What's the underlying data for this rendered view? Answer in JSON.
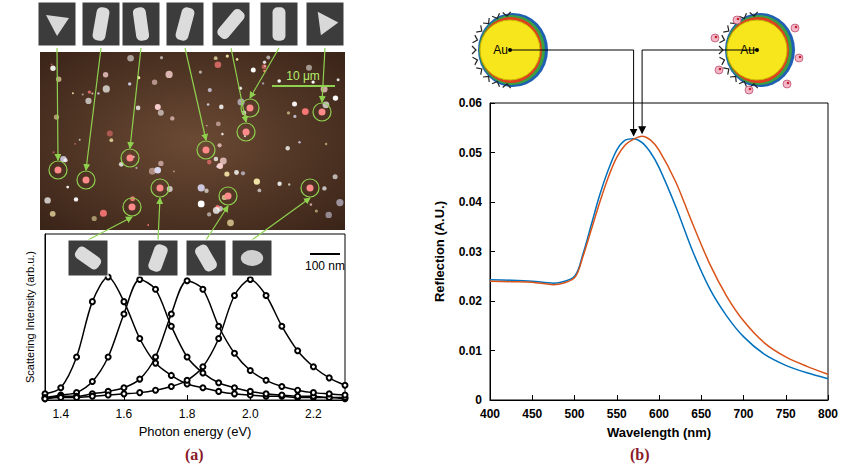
{
  "chart_data": [
    {
      "type": "line",
      "panel": "(a)",
      "xlabel": "Photon energy (eV)",
      "ylabel": "Scattering Intensity (arb.u.)",
      "annotations": [
        "10 μm",
        "100 nm"
      ],
      "x": [
        1.35,
        1.4,
        1.45,
        1.5,
        1.55,
        1.6,
        1.65,
        1.7,
        1.75,
        1.8,
        1.85,
        1.9,
        1.95,
        2.0,
        2.05,
        2.1,
        2.15,
        2.2,
        2.25,
        2.3
      ],
      "series": [
        {
          "color": "#000000",
          "marker": "circle",
          "line_style": "solid",
          "values": [
            0.05,
            0.1,
            0.35,
            0.8,
            1.0,
            0.8,
            0.5,
            0.3,
            0.2,
            0.13,
            0.1,
            0.07,
            0.05,
            0.04,
            0.03,
            0.03,
            0.02,
            0.02,
            0.02,
            0.01
          ]
        },
        {
          "color": "#000000",
          "marker": "circle",
          "line_style": "solid",
          "values": [
            0.02,
            0.04,
            0.06,
            0.15,
            0.35,
            0.7,
            0.98,
            0.9,
            0.6,
            0.35,
            0.22,
            0.14,
            0.1,
            0.07,
            0.05,
            0.04,
            0.03,
            0.03,
            0.02,
            0.02
          ]
        },
        {
          "color": "#000000",
          "marker": "circle",
          "line_style": "solid",
          "values": [
            0.01,
            0.03,
            0.03,
            0.05,
            0.07,
            0.1,
            0.17,
            0.35,
            0.7,
            0.97,
            0.9,
            0.6,
            0.38,
            0.24,
            0.16,
            0.11,
            0.08,
            0.06,
            0.05,
            0.04
          ]
        },
        {
          "color": "#000000",
          "marker": "circle",
          "line_style": "solid",
          "values": [
            0.01,
            0.02,
            0.02,
            0.03,
            0.04,
            0.05,
            0.06,
            0.08,
            0.11,
            0.16,
            0.27,
            0.5,
            0.85,
            0.98,
            0.85,
            0.6,
            0.4,
            0.27,
            0.18,
            0.12
          ]
        }
      ],
      "xlim": [
        1.35,
        2.3
      ],
      "xticks": [
        1.4,
        1.6,
        1.8,
        {
          "value": 2,
          "label": "2.0"
        },
        2.2
      ],
      "ylim": [
        0,
        1.35
      ],
      "grid": false,
      "tick_labels": "x"
    },
    {
      "type": "line",
      "panel": "(b)",
      "xlabel": "Wavelength (nm)",
      "ylabel": "Reflection (A.U.)",
      "annotations": [
        "Au",
        "Au"
      ],
      "x": [
        400,
        425,
        450,
        475,
        500,
        510,
        520,
        530,
        540,
        550,
        560,
        570,
        580,
        590,
        600,
        620,
        640,
        660,
        680,
        700,
        725,
        750,
        775,
        800
      ],
      "series": [
        {
          "color": "#0072bd",
          "marker": "none",
          "line_style": "solid",
          "values": [
            0.0243,
            0.0242,
            0.024,
            0.0236,
            0.025,
            0.0295,
            0.0355,
            0.0415,
            0.0465,
            0.0505,
            0.0525,
            0.0528,
            0.052,
            0.05,
            0.047,
            0.039,
            0.03,
            0.0225,
            0.017,
            0.0128,
            0.0092,
            0.007,
            0.0055,
            0.0043
          ]
        },
        {
          "color": "#d95319",
          "marker": "none",
          "line_style": "solid",
          "values": [
            0.024,
            0.0239,
            0.0238,
            0.0233,
            0.0247,
            0.029,
            0.0345,
            0.04,
            0.045,
            0.049,
            0.0515,
            0.0527,
            0.0533,
            0.0525,
            0.0505,
            0.044,
            0.0355,
            0.0275,
            0.021,
            0.016,
            0.0115,
            0.0087,
            0.0068,
            0.0052
          ]
        }
      ],
      "xlim": [
        400,
        800
      ],
      "xticks": [
        400,
        450,
        500,
        550,
        600,
        650,
        700,
        750,
        800
      ],
      "ylim": [
        0,
        0.06
      ],
      "yticks": [
        0,
        0.01,
        0.02,
        0.03,
        0.04,
        0.05,
        0.06
      ],
      "grid": false,
      "tick_labels": true
    }
  ]
}
